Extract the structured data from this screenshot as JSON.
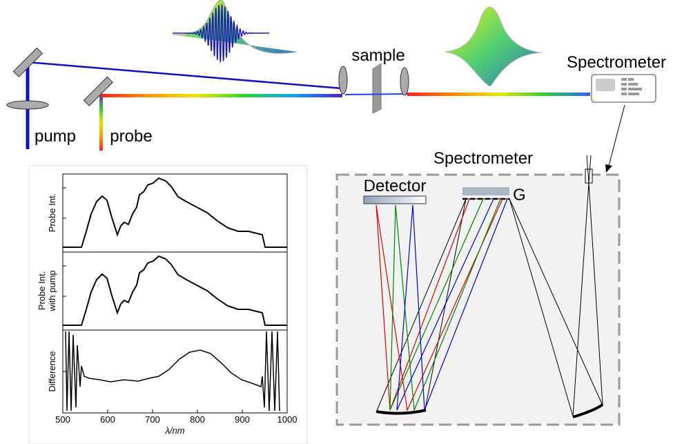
{
  "setup": {
    "pump": "pump",
    "probe": "probe",
    "sample": "sample",
    "spectrometer": "Spectrometer"
  },
  "spectrometer_box": {
    "title": "Spectrometer",
    "detector": "Detector",
    "grating": "G"
  },
  "plots": {
    "panels": [
      {
        "ylabel": [
          "Probe Int."
        ]
      },
      {
        "ylabel": [
          "Probe Int.",
          "with pump"
        ]
      },
      {
        "ylabel": [
          "Difference"
        ]
      }
    ],
    "xlim": [
      500,
      1000
    ],
    "xticks": [
      500,
      600,
      700,
      800,
      900,
      1000
    ],
    "xlabel": "λ/nm"
  }
}
